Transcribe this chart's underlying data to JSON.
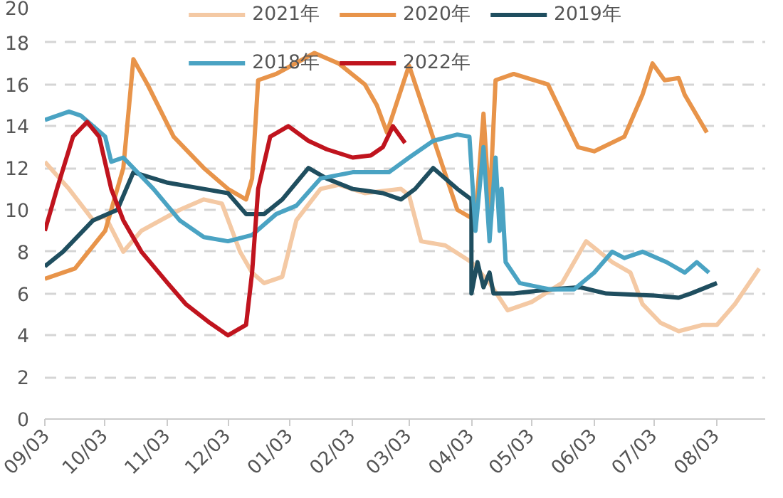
{
  "chart_data": {
    "type": "line",
    "xlim": [
      "2021-09-03",
      "2022-08-27"
    ],
    "ylim": [
      0,
      20
    ],
    "yticks": [
      0,
      2,
      4,
      6,
      8,
      10,
      12,
      14,
      16,
      18,
      20
    ],
    "xticks": [
      {
        "value": "2021-09-03",
        "label": "09/03"
      },
      {
        "value": "2021-10-03",
        "label": "10/03"
      },
      {
        "value": "2021-11-03",
        "label": "11/03"
      },
      {
        "value": "2021-12-03",
        "label": "12/03"
      },
      {
        "value": "2022-01-03",
        "label": "01/03"
      },
      {
        "value": "2022-02-03",
        "label": "02/03"
      },
      {
        "value": "2022-03-03",
        "label": "03/03"
      },
      {
        "value": "2022-04-03",
        "label": "04/03"
      },
      {
        "value": "2022-05-03",
        "label": "05/03"
      },
      {
        "value": "2022-06-03",
        "label": "06/03"
      },
      {
        "value": "2022-07-03",
        "label": "07/03"
      },
      {
        "value": "2022-08-03",
        "label": "08/03"
      }
    ],
    "grid": "y",
    "legend": "top",
    "marker": "none",
    "line_style": "solid",
    "series": [
      {
        "name": "2021年",
        "color": "#f4c9a4",
        "x": [
          "2021-09-03",
          "2021-09-15",
          "2021-09-27",
          "2021-10-03",
          "2021-10-12",
          "2021-10-21",
          "2021-11-09",
          "2021-11-21",
          "2021-11-30",
          "2021-12-09",
          "2021-12-15",
          "2021-12-21",
          "2021-12-30",
          "2022-01-06",
          "2022-01-18",
          "2022-01-27",
          "2022-02-09",
          "2022-02-27",
          "2022-03-03",
          "2022-03-09",
          "2022-03-21",
          "2022-04-03",
          "2022-04-12",
          "2022-04-21",
          "2022-05-03",
          "2022-05-18",
          "2022-05-30",
          "2022-06-12",
          "2022-06-21",
          "2022-06-27",
          "2022-07-06",
          "2022-07-15",
          "2022-07-27",
          "2022-08-03",
          "2022-08-12",
          "2022-08-24"
        ],
        "values": [
          12.3,
          11,
          9.5,
          9.7,
          8,
          9,
          10,
          10.5,
          10.3,
          8,
          7,
          6.5,
          6.8,
          9.5,
          11,
          11.2,
          10.8,
          11,
          10.7,
          8.5,
          8.3,
          7.5,
          6.5,
          5.2,
          5.6,
          6.5,
          8.5,
          7.5,
          7,
          5.5,
          4.6,
          4.2,
          4.5,
          4.5,
          5.5,
          7.2
        ]
      },
      {
        "name": "2020年",
        "color": "#e8944a",
        "x": [
          "2021-09-03",
          "2021-09-18",
          "2021-10-03",
          "2021-10-12",
          "2021-10-17",
          "2021-10-24",
          "2021-11-06",
          "2021-11-21",
          "2021-12-03",
          "2021-12-12",
          "2021-12-15",
          "2021-12-18",
          "2021-12-27",
          "2022-01-15",
          "2022-01-27",
          "2022-02-09",
          "2022-02-15",
          "2022-02-20",
          "2022-03-03",
          "2022-03-20",
          "2022-03-27",
          "2022-04-05",
          "2022-04-09",
          "2022-04-12",
          "2022-04-15",
          "2022-04-24",
          "2022-05-11",
          "2022-05-26",
          "2022-06-03",
          "2022-06-18",
          "2022-06-27",
          "2022-07-02",
          "2022-07-08",
          "2022-07-15",
          "2022-07-18",
          "2022-07-29"
        ],
        "values": [
          6.7,
          7.2,
          9,
          12,
          17.2,
          16,
          13.5,
          12,
          11,
          10.5,
          11.5,
          16.2,
          16.5,
          17.5,
          17,
          16,
          15,
          13.7,
          16.9,
          12,
          10,
          9.5,
          14.6,
          10,
          16.2,
          16.5,
          16,
          13,
          12.8,
          13.5,
          15.5,
          17,
          16.2,
          16.3,
          15.5,
          13.7
        ]
      },
      {
        "name": "2019年",
        "color": "#1f4e5f",
        "x": [
          "2021-09-03",
          "2021-09-12",
          "2021-09-27",
          "2021-10-09",
          "2021-10-17",
          "2021-11-03",
          "2021-11-21",
          "2021-12-03",
          "2021-12-12",
          "2021-12-21",
          "2021-12-30",
          "2022-01-12",
          "2022-01-21",
          "2022-02-03",
          "2022-02-18",
          "2022-02-27",
          "2022-03-06",
          "2022-03-15",
          "2022-03-27",
          "2022-04-03",
          "2022-04-03",
          "2022-04-06",
          "2022-04-09",
          "2022-04-12",
          "2022-04-14",
          "2022-04-24",
          "2022-05-12",
          "2022-05-27",
          "2022-06-09",
          "2022-07-03",
          "2022-07-15",
          "2022-07-21",
          "2022-08-03"
        ],
        "values": [
          7.3,
          8,
          9.5,
          10,
          11.8,
          11.3,
          11,
          10.8,
          9.8,
          9.8,
          10.5,
          12,
          11.5,
          11,
          10.8,
          10.5,
          11,
          12,
          11,
          10.5,
          6,
          7.5,
          6.3,
          7,
          6,
          6,
          6.2,
          6.3,
          6,
          5.9,
          5.8,
          6,
          6.5
        ]
      },
      {
        "name": "2018年",
        "color": "#4aa3c3",
        "x": [
          "2021-09-03",
          "2021-09-15",
          "2021-09-21",
          "2021-10-03",
          "2021-10-06",
          "2021-10-12",
          "2021-10-27",
          "2021-11-09",
          "2021-11-21",
          "2021-12-03",
          "2021-12-15",
          "2021-12-27",
          "2022-01-06",
          "2022-01-18",
          "2022-02-03",
          "2022-02-21",
          "2022-03-03",
          "2022-03-15",
          "2022-03-27",
          "2022-04-02",
          "2022-04-05",
          "2022-04-09",
          "2022-04-12",
          "2022-04-15",
          "2022-04-17",
          "2022-04-18",
          "2022-04-20",
          "2022-04-27",
          "2022-05-12",
          "2022-05-24",
          "2022-06-03",
          "2022-06-12",
          "2022-06-18",
          "2022-06-27",
          "2022-07-09",
          "2022-07-18",
          "2022-07-24",
          "2022-07-30"
        ],
        "values": [
          14.3,
          14.7,
          14.5,
          13.5,
          12.3,
          12.5,
          11,
          9.5,
          8.7,
          8.5,
          8.8,
          9.8,
          10.2,
          11.5,
          11.8,
          11.8,
          12.5,
          13.3,
          13.6,
          13.5,
          9,
          13,
          8.5,
          12.5,
          9,
          11,
          7.5,
          6.5,
          6.2,
          6.2,
          7,
          8,
          7.7,
          8,
          7.5,
          7,
          7.5,
          7
        ]
      },
      {
        "name": "2022年",
        "color": "#c0141e",
        "x": [
          "2021-09-03",
          "2021-09-09",
          "2021-09-17",
          "2021-09-24",
          "2021-09-30",
          "2021-10-06",
          "2021-10-12",
          "2021-10-21",
          "2021-11-03",
          "2021-11-12",
          "2021-11-24",
          "2021-12-03",
          "2021-12-12",
          "2021-12-15",
          "2021-12-18",
          "2021-12-24",
          "2022-01-02",
          "2022-01-12",
          "2022-01-21",
          "2022-02-03",
          "2022-02-12",
          "2022-02-18",
          "2022-02-23",
          "2022-03-01"
        ],
        "values": [
          9,
          11,
          13.5,
          14.2,
          13.5,
          11,
          9.5,
          8,
          6.5,
          5.5,
          4.6,
          4,
          4.5,
          7,
          11,
          13.5,
          14,
          13.3,
          12.9,
          12.5,
          12.6,
          13,
          14,
          13.2
        ]
      }
    ]
  }
}
